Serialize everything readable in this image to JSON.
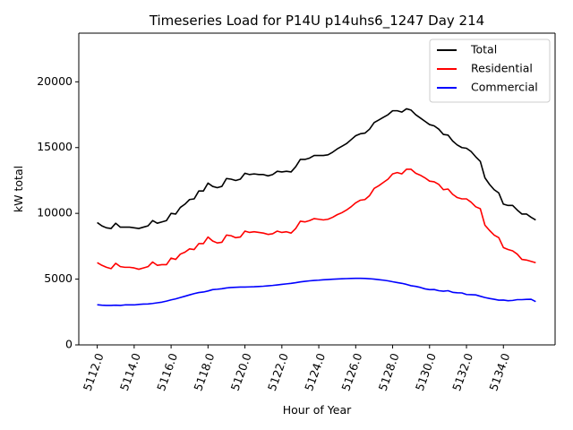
{
  "chart_data": {
    "type": "line",
    "title": "Timeseries Load for P14U p14uhs6_1247  Day 214",
    "xlabel": "Hour of Year",
    "ylabel": "kW total",
    "xlim": [
      5111.0,
      5136.8
    ],
    "ylim": [
      0,
      23700
    ],
    "xticks": [
      5112,
      5114,
      5116,
      5118,
      5120,
      5122,
      5124,
      5126,
      5128,
      5130,
      5132,
      5134
    ],
    "xtick_labels": [
      "5112.0",
      "5114.0",
      "5116.0",
      "5118.0",
      "5120.0",
      "5122.0",
      "5124.0",
      "5126.0",
      "5128.0",
      "5130.0",
      "5132.0",
      "5134.0"
    ],
    "yticks": [
      0,
      5000,
      10000,
      15000,
      20000
    ],
    "ytick_labels": [
      "0",
      "5000",
      "10000",
      "15000",
      "20000"
    ],
    "legend_position": "top-right",
    "x": [
      5112.0,
      5112.25,
      5112.5,
      5112.75,
      5113.0,
      5113.25,
      5113.5,
      5113.75,
      5114.0,
      5114.25,
      5114.5,
      5114.75,
      5115.0,
      5115.25,
      5115.5,
      5115.75,
      5116.0,
      5116.25,
      5116.5,
      5116.75,
      5117.0,
      5117.25,
      5117.5,
      5117.75,
      5118.0,
      5118.25,
      5118.5,
      5118.75,
      5119.0,
      5119.25,
      5119.5,
      5119.75,
      5120.0,
      5120.25,
      5120.5,
      5120.75,
      5121.0,
      5121.25,
      5121.5,
      5121.75,
      5122.0,
      5122.25,
      5122.5,
      5122.75,
      5123.0,
      5123.25,
      5123.5,
      5123.75,
      5124.0,
      5124.25,
      5124.5,
      5124.75,
      5125.0,
      5125.25,
      5125.5,
      5125.75,
      5126.0,
      5126.25,
      5126.5,
      5126.75,
      5127.0,
      5127.25,
      5127.5,
      5127.75,
      5128.0,
      5128.25,
      5128.5,
      5128.75,
      5129.0,
      5129.25,
      5129.5,
      5129.75,
      5130.0,
      5130.25,
      5130.5,
      5130.75,
      5131.0,
      5131.25,
      5131.5,
      5131.75,
      5132.0,
      5132.25,
      5132.5,
      5132.75,
      5133.0,
      5133.25,
      5133.5,
      5133.75,
      5134.0,
      5134.25,
      5134.5,
      5134.75,
      5135.0,
      5135.25,
      5135.5,
      5135.75
    ],
    "series": [
      {
        "name": "Total",
        "color": "#000000",
        "values": [
          9300,
          9050,
          8900,
          8850,
          9250,
          8950,
          8950,
          8950,
          8900,
          8850,
          8950,
          9050,
          9450,
          9250,
          9350,
          9450,
          10000,
          9950,
          10450,
          10700,
          11050,
          11100,
          11700,
          11700,
          12300,
          12050,
          11950,
          12050,
          12650,
          12600,
          12500,
          12600,
          13050,
          12950,
          13000,
          12950,
          12950,
          12850,
          12950,
          13200,
          13150,
          13200,
          13150,
          13550,
          14100,
          14100,
          14200,
          14400,
          14400,
          14400,
          14450,
          14650,
          14900,
          15100,
          15300,
          15600,
          15900,
          16050,
          16100,
          16400,
          16900,
          17100,
          17300,
          17500,
          17800,
          17800,
          17700,
          17950,
          17850,
          17500,
          17250,
          17000,
          16750,
          16650,
          16400,
          16000,
          15950,
          15500,
          15200,
          15000,
          14950,
          14700,
          14300,
          13950,
          12700,
          12200,
          11800,
          11550,
          10700,
          10600,
          10600,
          10250,
          9950,
          9950,
          9700,
          9500
        ]
      },
      {
        "name": "Residential",
        "color": "#ff0000",
        "values": [
          6250,
          6050,
          5900,
          5800,
          6200,
          5950,
          5900,
          5900,
          5850,
          5750,
          5850,
          5950,
          6300,
          6050,
          6100,
          6100,
          6600,
          6500,
          6900,
          7050,
          7300,
          7250,
          7700,
          7700,
          8200,
          7900,
          7750,
          7800,
          8350,
          8300,
          8150,
          8200,
          8650,
          8550,
          8600,
          8550,
          8500,
          8400,
          8450,
          8650,
          8550,
          8600,
          8500,
          8850,
          9400,
          9350,
          9450,
          9600,
          9550,
          9500,
          9550,
          9700,
          9900,
          10050,
          10250,
          10500,
          10800,
          11000,
          11050,
          11350,
          11900,
          12100,
          12350,
          12600,
          13000,
          13100,
          13000,
          13350,
          13350,
          13050,
          12900,
          12700,
          12450,
          12400,
          12200,
          11800,
          11850,
          11450,
          11200,
          11100,
          11100,
          10850,
          10500,
          10350,
          9100,
          8700,
          8350,
          8150,
          7400,
          7250,
          7150,
          6900,
          6500,
          6450,
          6350,
          6250
        ]
      },
      {
        "name": "Commercial",
        "color": "#0000ff",
        "values": [
          3050,
          3020,
          3000,
          3000,
          3020,
          3000,
          3040,
          3040,
          3040,
          3080,
          3100,
          3110,
          3150,
          3200,
          3250,
          3330,
          3420,
          3500,
          3600,
          3700,
          3800,
          3900,
          3980,
          4020,
          4100,
          4200,
          4230,
          4270,
          4330,
          4360,
          4380,
          4400,
          4400,
          4410,
          4420,
          4440,
          4460,
          4490,
          4520,
          4560,
          4600,
          4640,
          4680,
          4730,
          4790,
          4830,
          4870,
          4900,
          4920,
          4950,
          4970,
          4990,
          5010,
          5030,
          5040,
          5050,
          5060,
          5060,
          5050,
          5030,
          5000,
          4960,
          4920,
          4870,
          4800,
          4740,
          4680,
          4600,
          4500,
          4450,
          4370,
          4260,
          4200,
          4210,
          4120,
          4080,
          4120,
          4000,
          3960,
          3950,
          3830,
          3820,
          3800,
          3700,
          3600,
          3530,
          3470,
          3400,
          3410,
          3360,
          3380,
          3440,
          3440,
          3460,
          3470,
          3290
        ]
      }
    ]
  }
}
